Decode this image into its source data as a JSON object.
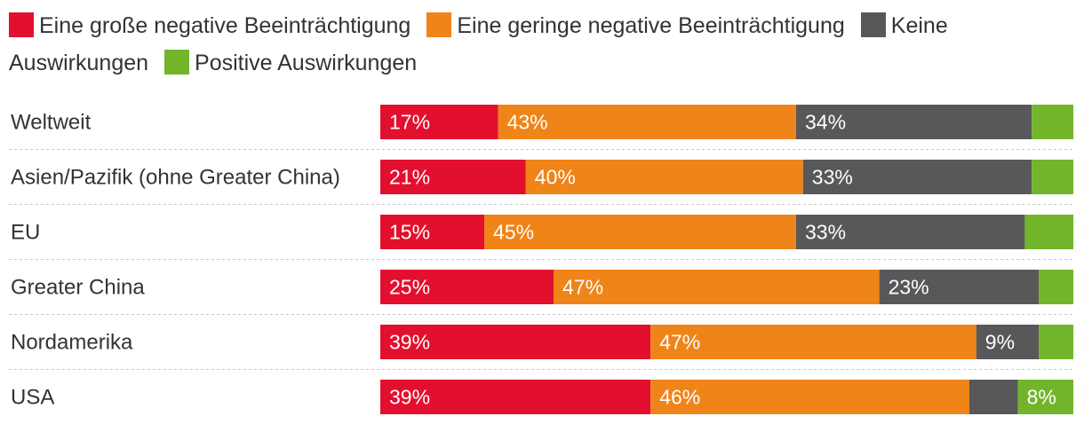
{
  "chart_data": {
    "type": "bar",
    "orientation": "horizontal",
    "stacked": true,
    "title": "",
    "xlabel": "",
    "ylabel": "",
    "xlim": [
      0,
      100
    ],
    "legend_position": "top",
    "categories": [
      "Weltweit",
      "Asien/Pazifik (ohne Greater China)",
      "EU",
      "Greater China",
      "Nordamerika",
      "USA"
    ],
    "series": [
      {
        "name": "Eine große negative Beeinträchtigung",
        "color": "#e30f2e",
        "values": [
          17,
          21,
          15,
          25,
          39,
          39
        ],
        "labels": [
          "17%",
          "21%",
          "15%",
          "25%",
          "39%",
          "39%"
        ]
      },
      {
        "name": "Eine geringe negative Beeinträchtigung",
        "color": "#ef8419",
        "values": [
          43,
          40,
          45,
          47,
          47,
          46
        ],
        "labels": [
          "43%",
          "40%",
          "45%",
          "47%",
          "47%",
          "46%"
        ]
      },
      {
        "name": "Keine Auswirkungen",
        "color": "#58585a",
        "values": [
          34,
          33,
          33,
          23,
          9,
          7
        ],
        "labels": [
          "34%",
          "33%",
          "33%",
          "23%",
          "9%",
          ""
        ]
      },
      {
        "name": "Positive Auswirkungen",
        "color": "#73b52a",
        "values": [
          6,
          6,
          7,
          5,
          5,
          8
        ],
        "labels": [
          "",
          "",
          "",
          "",
          "",
          "8%"
        ]
      }
    ]
  }
}
